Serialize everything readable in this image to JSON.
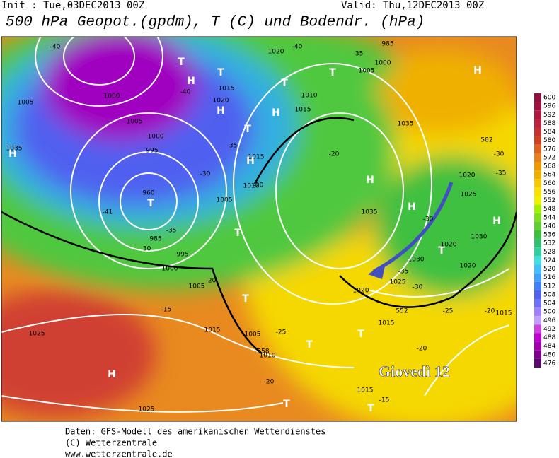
{
  "header": {
    "init": "Init : Tue,03DEC2013 00Z",
    "valid": "Valid: Thu,12DEC2013 00Z",
    "title": "500 hPa Geopot.(gpdm), T (C) und Bodendr. (hPa)"
  },
  "colorbar": {
    "levels": [
      600,
      596,
      592,
      588,
      584,
      580,
      576,
      572,
      568,
      564,
      560,
      556,
      552,
      548,
      544,
      540,
      536,
      532,
      528,
      524,
      520,
      516,
      512,
      508,
      504,
      500,
      496,
      492,
      488,
      484,
      480,
      476
    ],
    "colors": [
      "#901040",
      "#a01040",
      "#b01840",
      "#c02040",
      "#c83030",
      "#d04020",
      "#e06020",
      "#e88020",
      "#f09800",
      "#f0b000",
      "#f8c800",
      "#f8e000",
      "#f0f000",
      "#a0f000",
      "#80e020",
      "#60d030",
      "#40c040",
      "#30c070",
      "#30d0a0",
      "#40e0e0",
      "#40c0ff",
      "#40a0ff",
      "#4080ff",
      "#5060f0",
      "#7070ff",
      "#a080ff",
      "#c0a0ff",
      "#d040e0",
      "#c000d0",
      "#a000b0",
      "#800090",
      "#5a0a6a"
    ]
  },
  "map": {
    "labels": [
      "H",
      "T",
      "H",
      "T",
      "H",
      "T",
      "H",
      "T",
      "H",
      "H",
      "T",
      "T",
      "T",
      "H",
      "H",
      "H",
      "T",
      "T",
      "H",
      "T",
      "T",
      "T",
      "T",
      "1035",
      "1005",
      "1000",
      "1005",
      "1000",
      "995",
      "960",
      "985",
      "995",
      "1000",
      "1005",
      "1015",
      "1020",
      "1010",
      "1015",
      "1020",
      "1005",
      "1000",
      "985",
      "1035",
      "1035",
      "1020",
      "1025",
      "1030",
      "1020",
      "1030",
      "1025",
      "1020",
      "1015",
      "1005",
      "1010",
      "1025",
      "1025",
      "1015",
      "1015",
      "1015",
      "1020",
      "1010",
      "1015",
      "1005",
      "-40",
      "-40",
      "-35",
      "-40",
      "-35",
      "-30",
      "-41",
      "-35",
      "-30",
      "-20",
      "-15",
      "-20",
      "-20",
      "-25",
      "-20",
      "-20",
      "-15",
      "-30",
      "-35",
      "-30",
      "-35",
      "-30",
      "-20",
      "-25",
      "582",
      "552",
      "558"
    ],
    "annotation": "Giovedì 12"
  },
  "footer": [
    "Daten: GFS-Modell des amerikanischen Wetterdienstes",
    "(C) Wetterzentrale",
    "www.wetterzentrale.de"
  ]
}
